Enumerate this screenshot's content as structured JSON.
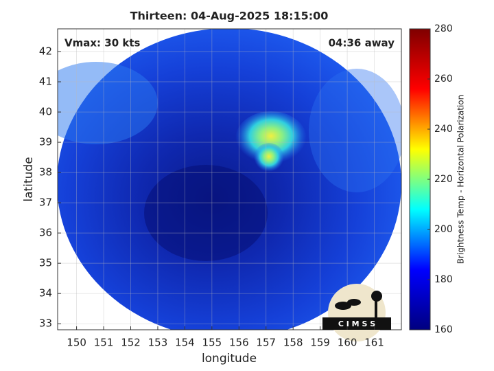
{
  "chart_data": {
    "type": "image",
    "title": "Thirteen: 04-Aug-2025 18:15:00",
    "annotations": [
      "Vmax: 30 kts",
      "04:36 away"
    ],
    "x_label": "longitude",
    "y_label": "latitude",
    "xlim": [
      149.3,
      162
    ],
    "xticks": [
      150,
      151,
      152,
      153,
      154,
      155,
      156,
      157,
      158,
      159,
      160,
      161
    ],
    "ylim": [
      32.8,
      42.75
    ],
    "yticks": [
      33,
      34,
      35,
      36,
      37,
      38,
      39,
      40,
      41,
      42
    ],
    "grid": true,
    "colorbar": {
      "label": "Brightness Temp - Horizontal Polarization",
      "colormap": "jet",
      "clim": [
        160,
        280
      ],
      "ticks": [
        160,
        180,
        200,
        220,
        240,
        260,
        280
      ]
    },
    "logo_text": "C I M S S"
  }
}
